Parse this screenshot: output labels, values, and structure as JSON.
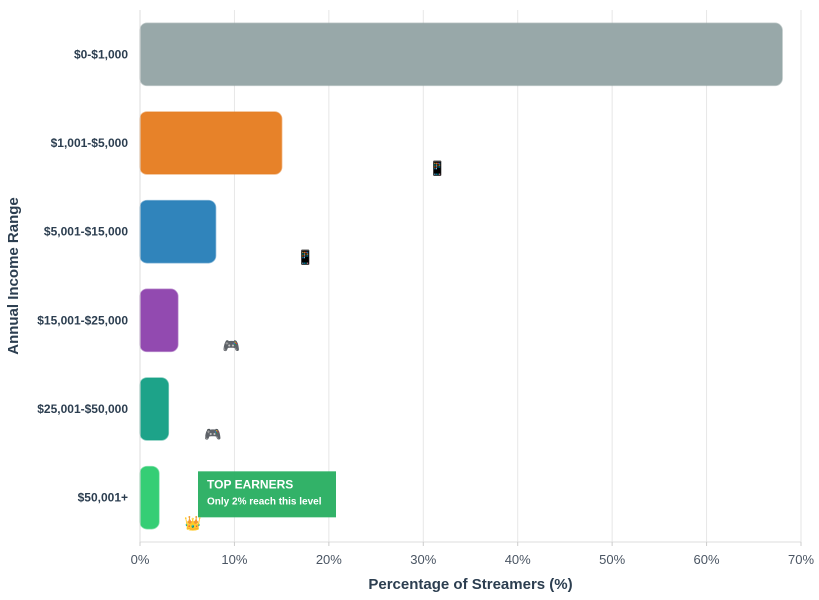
{
  "chart_data": {
    "type": "bar",
    "orientation": "horizontal",
    "title": "",
    "xlabel": "Percentage of Streamers (%)",
    "ylabel": "Annual Income Range",
    "xlim": [
      0,
      70
    ],
    "x_ticks": [
      0,
      10,
      20,
      30,
      40,
      50,
      60,
      70
    ],
    "x_tick_suffix": "%",
    "grid": "vertical",
    "categories": [
      "$0-$1,000",
      "$1,001-$5,000",
      "$5,001-$15,000",
      "$15,001-$25,000",
      "$25,001-$50,000",
      "$50,001+"
    ],
    "values": [
      68,
      15,
      8,
      4,
      3,
      2
    ],
    "colors": [
      "#95a5a6",
      "#e67e22",
      "#2980b9",
      "#8e44ad",
      "#16a085",
      "#2ecc71"
    ],
    "icons": [
      {
        "name": "phone-icon",
        "glyph": "📱",
        "category_index": 1,
        "x": 31.5
      },
      {
        "name": "phone-icon",
        "glyph": "📱",
        "category_index": 2,
        "x": 17.5
      },
      {
        "name": "gamepad-icon",
        "glyph": "🎮",
        "category_index": 3,
        "x": 9.7
      },
      {
        "name": "gamepad-icon",
        "glyph": "🎮",
        "category_index": 4,
        "x": 7.7
      },
      {
        "name": "crown-icon",
        "glyph": "👑",
        "category_index": 5,
        "x": 5.6
      }
    ],
    "annotation": {
      "category_index": 5,
      "title": "TOP EARNERS",
      "subtitle": "Only 2% reach this level",
      "color": "#27ae60"
    }
  }
}
